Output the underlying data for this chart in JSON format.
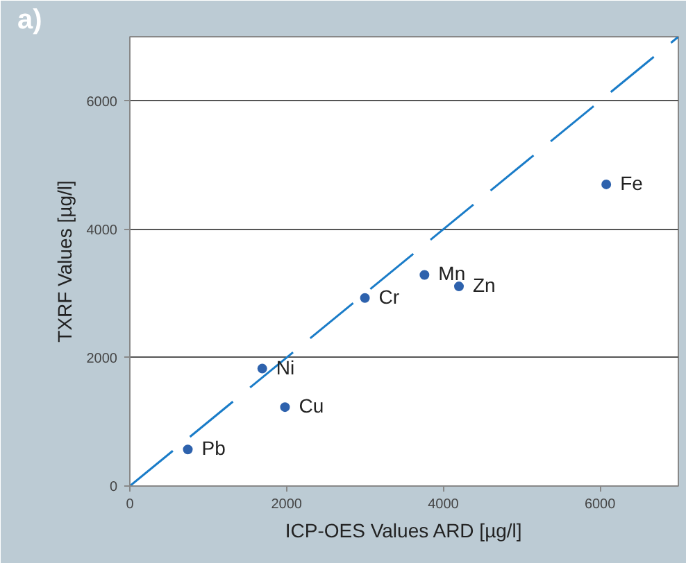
{
  "chart_data": {
    "type": "scatter",
    "title": "a)",
    "xlabel": "ICP-OES Values ARD [µg/l]",
    "ylabel": "TXRF Values [µg/l]",
    "xlim": [
      0,
      7000
    ],
    "ylim": [
      0,
      7000
    ],
    "xticks": [
      0,
      2000,
      4000,
      6000
    ],
    "yticks": [
      0,
      2000,
      4000,
      6000
    ],
    "grid": "y",
    "marker": "circle",
    "series": [
      {
        "color": "#2e62ad",
        "x": [
          740,
          1690,
          1980,
          3000,
          3760,
          4200,
          6080
        ],
        "values": [
          570,
          1830,
          1230,
          2930,
          3290,
          3110,
          4700
        ]
      },
      {
        "type": "line",
        "color": "#1a7cc8",
        "line_style": "dashed",
        "marker": "none",
        "x": [
          0,
          7000
        ],
        "values": [
          0,
          7000
        ]
      }
    ],
    "annotations": [
      {
        "text": "Pb",
        "x": 740,
        "y": 570
      },
      {
        "text": "Ni",
        "x": 1690,
        "y": 1830
      },
      {
        "text": "Cu",
        "x": 1980,
        "y": 1230
      },
      {
        "text": "Cr",
        "x": 3000,
        "y": 2930
      },
      {
        "text": "Mn",
        "x": 3760,
        "y": 3290
      },
      {
        "text": "Zn",
        "x": 4200,
        "y": 3110
      },
      {
        "text": "Fe",
        "x": 6080,
        "y": 4700
      }
    ]
  }
}
